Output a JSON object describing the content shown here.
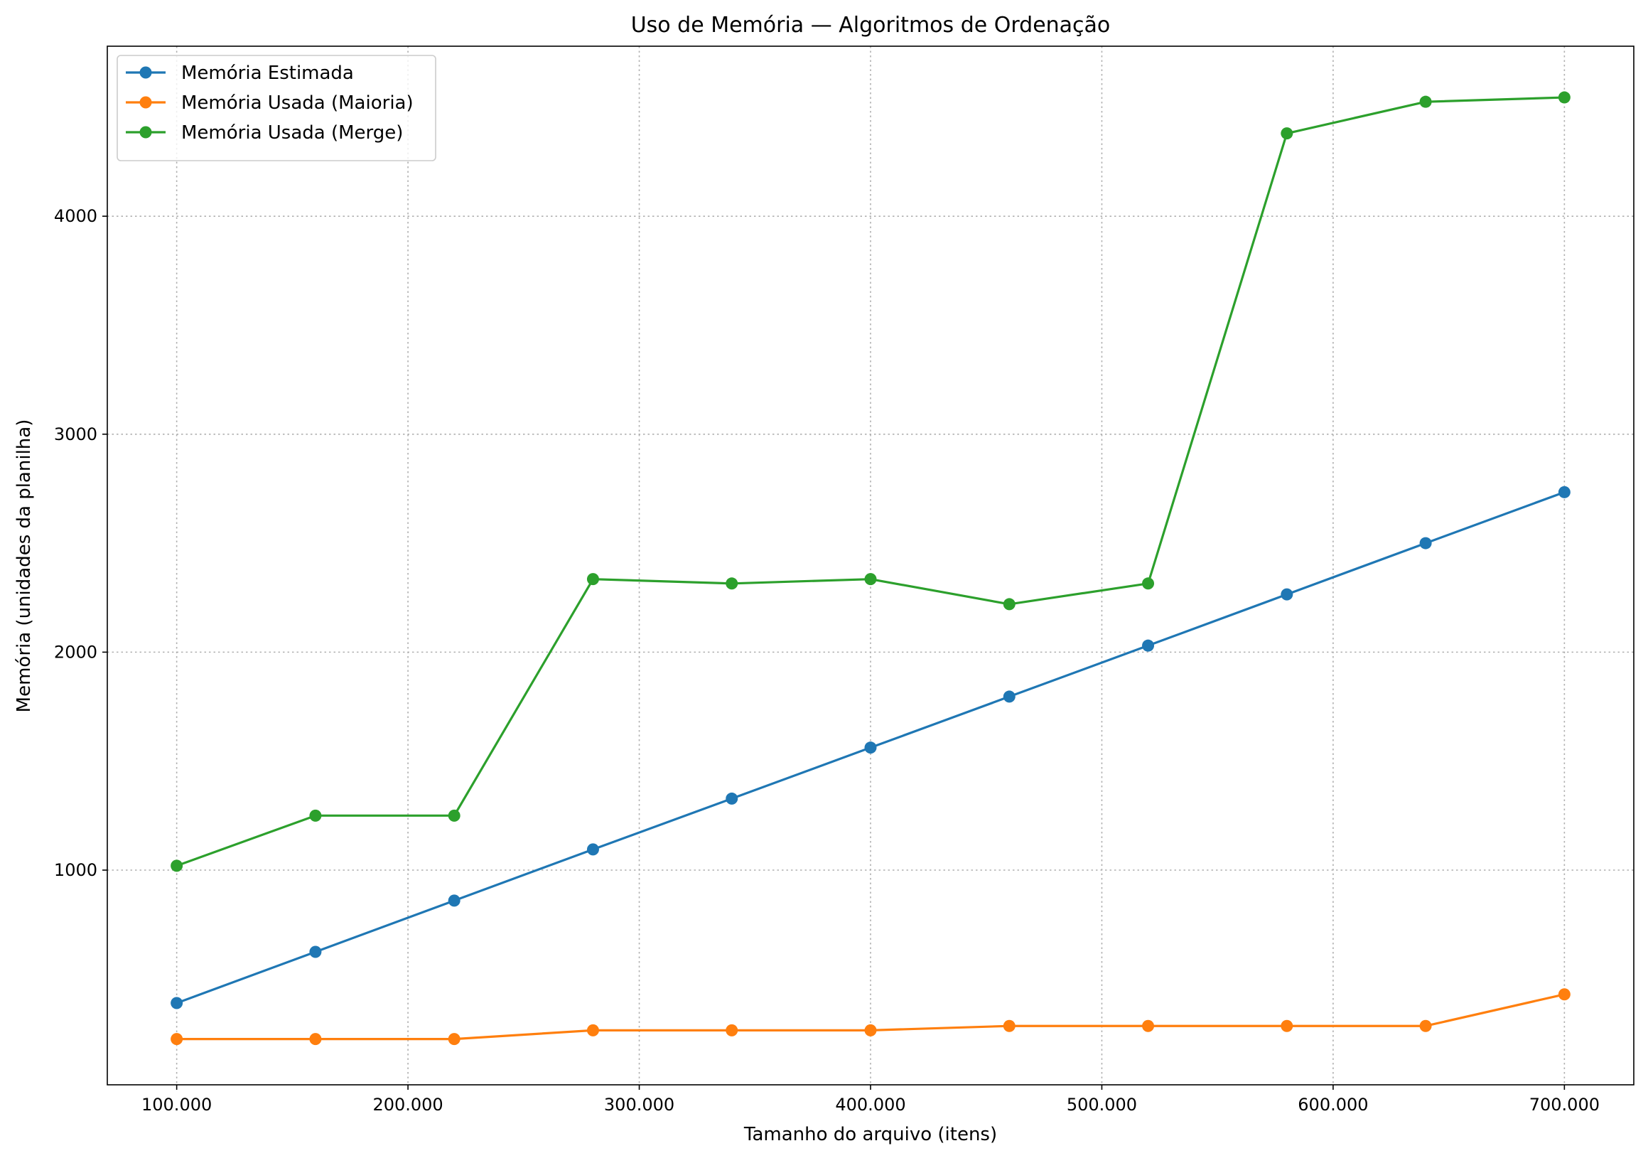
{
  "chart_data": {
    "type": "line",
    "title": "Uso de Memória — Algoritmos de Ordenação",
    "xlabel": "Tamanho do arquivo (itens)",
    "ylabel": "Memória (unidades da planilha)",
    "x": [
      100000,
      160000,
      220000,
      280000,
      340000,
      400000,
      460000,
      520000,
      580000,
      640000,
      700000
    ],
    "xlim": [
      70000,
      730000
    ],
    "ylim": [
      15,
      4780
    ],
    "x_ticks": [
      {
        "value": 100000,
        "label": "100.000"
      },
      {
        "value": 200000,
        "label": "200.000"
      },
      {
        "value": 300000,
        "label": "300.000"
      },
      {
        "value": 400000,
        "label": "400.000"
      },
      {
        "value": 500000,
        "label": "500.000"
      },
      {
        "value": 600000,
        "label": "600.000"
      },
      {
        "value": 700000,
        "label": "700.000"
      }
    ],
    "y_ticks": [
      {
        "value": 1000,
        "label": "1000"
      },
      {
        "value": 2000,
        "label": "2000"
      },
      {
        "value": 3000,
        "label": "3000"
      },
      {
        "value": 4000,
        "label": "4000"
      }
    ],
    "grid": true,
    "legend_position": "top-left",
    "series": [
      {
        "name": "Memória Estimada",
        "color": "#1f77b4",
        "values": [
          390,
          625,
          860,
          1095,
          1328,
          1562,
          1796,
          2030,
          2265,
          2500,
          2734
        ]
      },
      {
        "name": "Memória Usada (Maioria)",
        "color": "#ff7f0e",
        "values": [
          225,
          225,
          225,
          265,
          265,
          265,
          285,
          285,
          285,
          285,
          430
        ]
      },
      {
        "name": "Memória Usada (Merge)",
        "color": "#2ca02c",
        "values": [
          1020,
          1250,
          1250,
          2335,
          2315,
          2335,
          2220,
          2315,
          4380,
          4525,
          4545
        ]
      }
    ]
  }
}
